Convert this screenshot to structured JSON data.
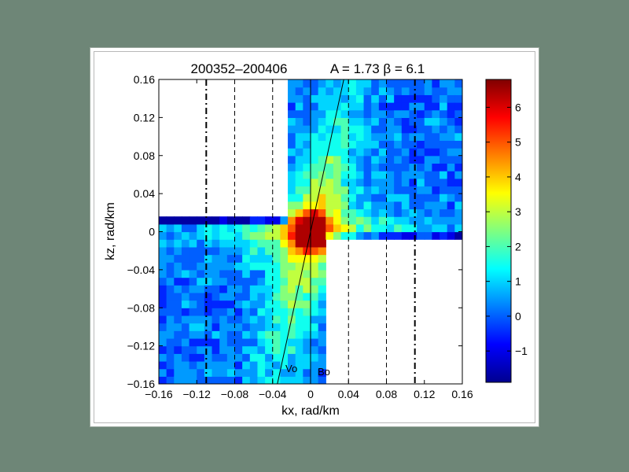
{
  "colors": {
    "page_background": "#6e8677",
    "figure_background": "#ffffff",
    "colormap": "jet"
  },
  "chart_data": {
    "type": "heatmap",
    "subtype": "filled-contour",
    "title_left": "200352–200406",
    "title_right": "A = 1.73  β = 6.1",
    "xlabel": "kx, rad/km",
    "ylabel": "kz, rad/km",
    "xlim": [
      -0.16,
      0.16
    ],
    "ylim": [
      -0.16,
      0.16
    ],
    "x_ticks": [
      "−0.16",
      "−0.12",
      "−0.08",
      "−0.04",
      "0",
      "0.04",
      "0.08",
      "0.12",
      "0.16"
    ],
    "y_ticks": [
      "0.16",
      "0.12",
      "0.08",
      "0.04",
      "0",
      "−0.04",
      "−0.08",
      "−0.12",
      "−0.16"
    ],
    "colorbar": {
      "range": [
        -1.9,
        6.8
      ],
      "ticks": [
        "6",
        "5",
        "4",
        "3",
        "2",
        "1",
        "0",
        "−1"
      ]
    },
    "peak": {
      "kx": 0.0,
      "kz": 0.0,
      "value": 6.7
    },
    "dash_dot_lines_kx": [
      -0.11,
      0.11
    ],
    "dashed_lines_kx": [
      -0.08,
      -0.04,
      0.04,
      0.08
    ],
    "solid_vertical_kx": 0.0,
    "oblique_line": {
      "from": [
        -0.035,
        -0.16
      ],
      "to": [
        0.035,
        0.16
      ]
    },
    "annotations": [
      "Vo",
      "Bo"
    ]
  }
}
